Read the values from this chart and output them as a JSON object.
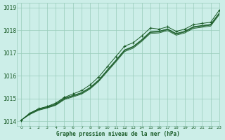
{
  "background_color": "#cceee8",
  "plot_bg_color": "#cceee8",
  "grid_color": "#99ccbb",
  "line_color": "#1a5c28",
  "xlabel": "Graphe pression niveau de la mer (hPa)",
  "ylim": [
    1013.8,
    1019.2
  ],
  "xlim": [
    -0.5,
    23
  ],
  "yticks": [
    1014,
    1015,
    1016,
    1017,
    1018,
    1019
  ],
  "xticks": [
    0,
    1,
    2,
    3,
    4,
    5,
    6,
    7,
    8,
    9,
    10,
    11,
    12,
    13,
    14,
    15,
    16,
    17,
    18,
    19,
    20,
    21,
    22,
    23
  ],
  "hours": [
    0,
    1,
    2,
    3,
    4,
    5,
    6,
    7,
    8,
    9,
    10,
    11,
    12,
    13,
    14,
    15,
    16,
    17,
    18,
    19,
    20,
    21,
    22,
    23
  ],
  "main_line": [
    1014.05,
    1014.35,
    1014.55,
    1014.65,
    1014.8,
    1015.05,
    1015.2,
    1015.35,
    1015.6,
    1015.95,
    1016.4,
    1016.85,
    1017.3,
    1017.45,
    1017.75,
    1018.1,
    1018.05,
    1018.15,
    1017.95,
    1018.05,
    1018.25,
    1018.3,
    1018.35,
    1018.88
  ],
  "band_line1": [
    1014.05,
    1014.32,
    1014.5,
    1014.6,
    1014.72,
    1014.98,
    1015.1,
    1015.22,
    1015.45,
    1015.78,
    1016.22,
    1016.65,
    1017.1,
    1017.25,
    1017.55,
    1017.9,
    1017.92,
    1018.02,
    1017.82,
    1017.92,
    1018.12,
    1018.17,
    1018.22,
    1018.72
  ],
  "band_line2": [
    1014.05,
    1014.3,
    1014.48,
    1014.58,
    1014.7,
    1014.95,
    1015.07,
    1015.19,
    1015.42,
    1015.75,
    1016.18,
    1016.61,
    1017.06,
    1017.21,
    1017.51,
    1017.86,
    1017.88,
    1017.98,
    1017.78,
    1017.88,
    1018.08,
    1018.13,
    1018.18,
    1018.68
  ],
  "band_line3": [
    1014.05,
    1014.34,
    1014.52,
    1014.62,
    1014.74,
    1015.0,
    1015.12,
    1015.24,
    1015.47,
    1015.8,
    1016.24,
    1016.67,
    1017.12,
    1017.27,
    1017.57,
    1017.92,
    1017.94,
    1018.04,
    1017.84,
    1017.94,
    1018.14,
    1018.19,
    1018.24,
    1018.74
  ],
  "band_line4": [
    1014.05,
    1014.36,
    1014.54,
    1014.64,
    1014.76,
    1015.02,
    1015.14,
    1015.26,
    1015.49,
    1015.82,
    1016.26,
    1016.69,
    1017.14,
    1017.29,
    1017.59,
    1017.94,
    1017.96,
    1018.06,
    1017.86,
    1017.96,
    1018.16,
    1018.21,
    1018.26,
    1018.76
  ]
}
